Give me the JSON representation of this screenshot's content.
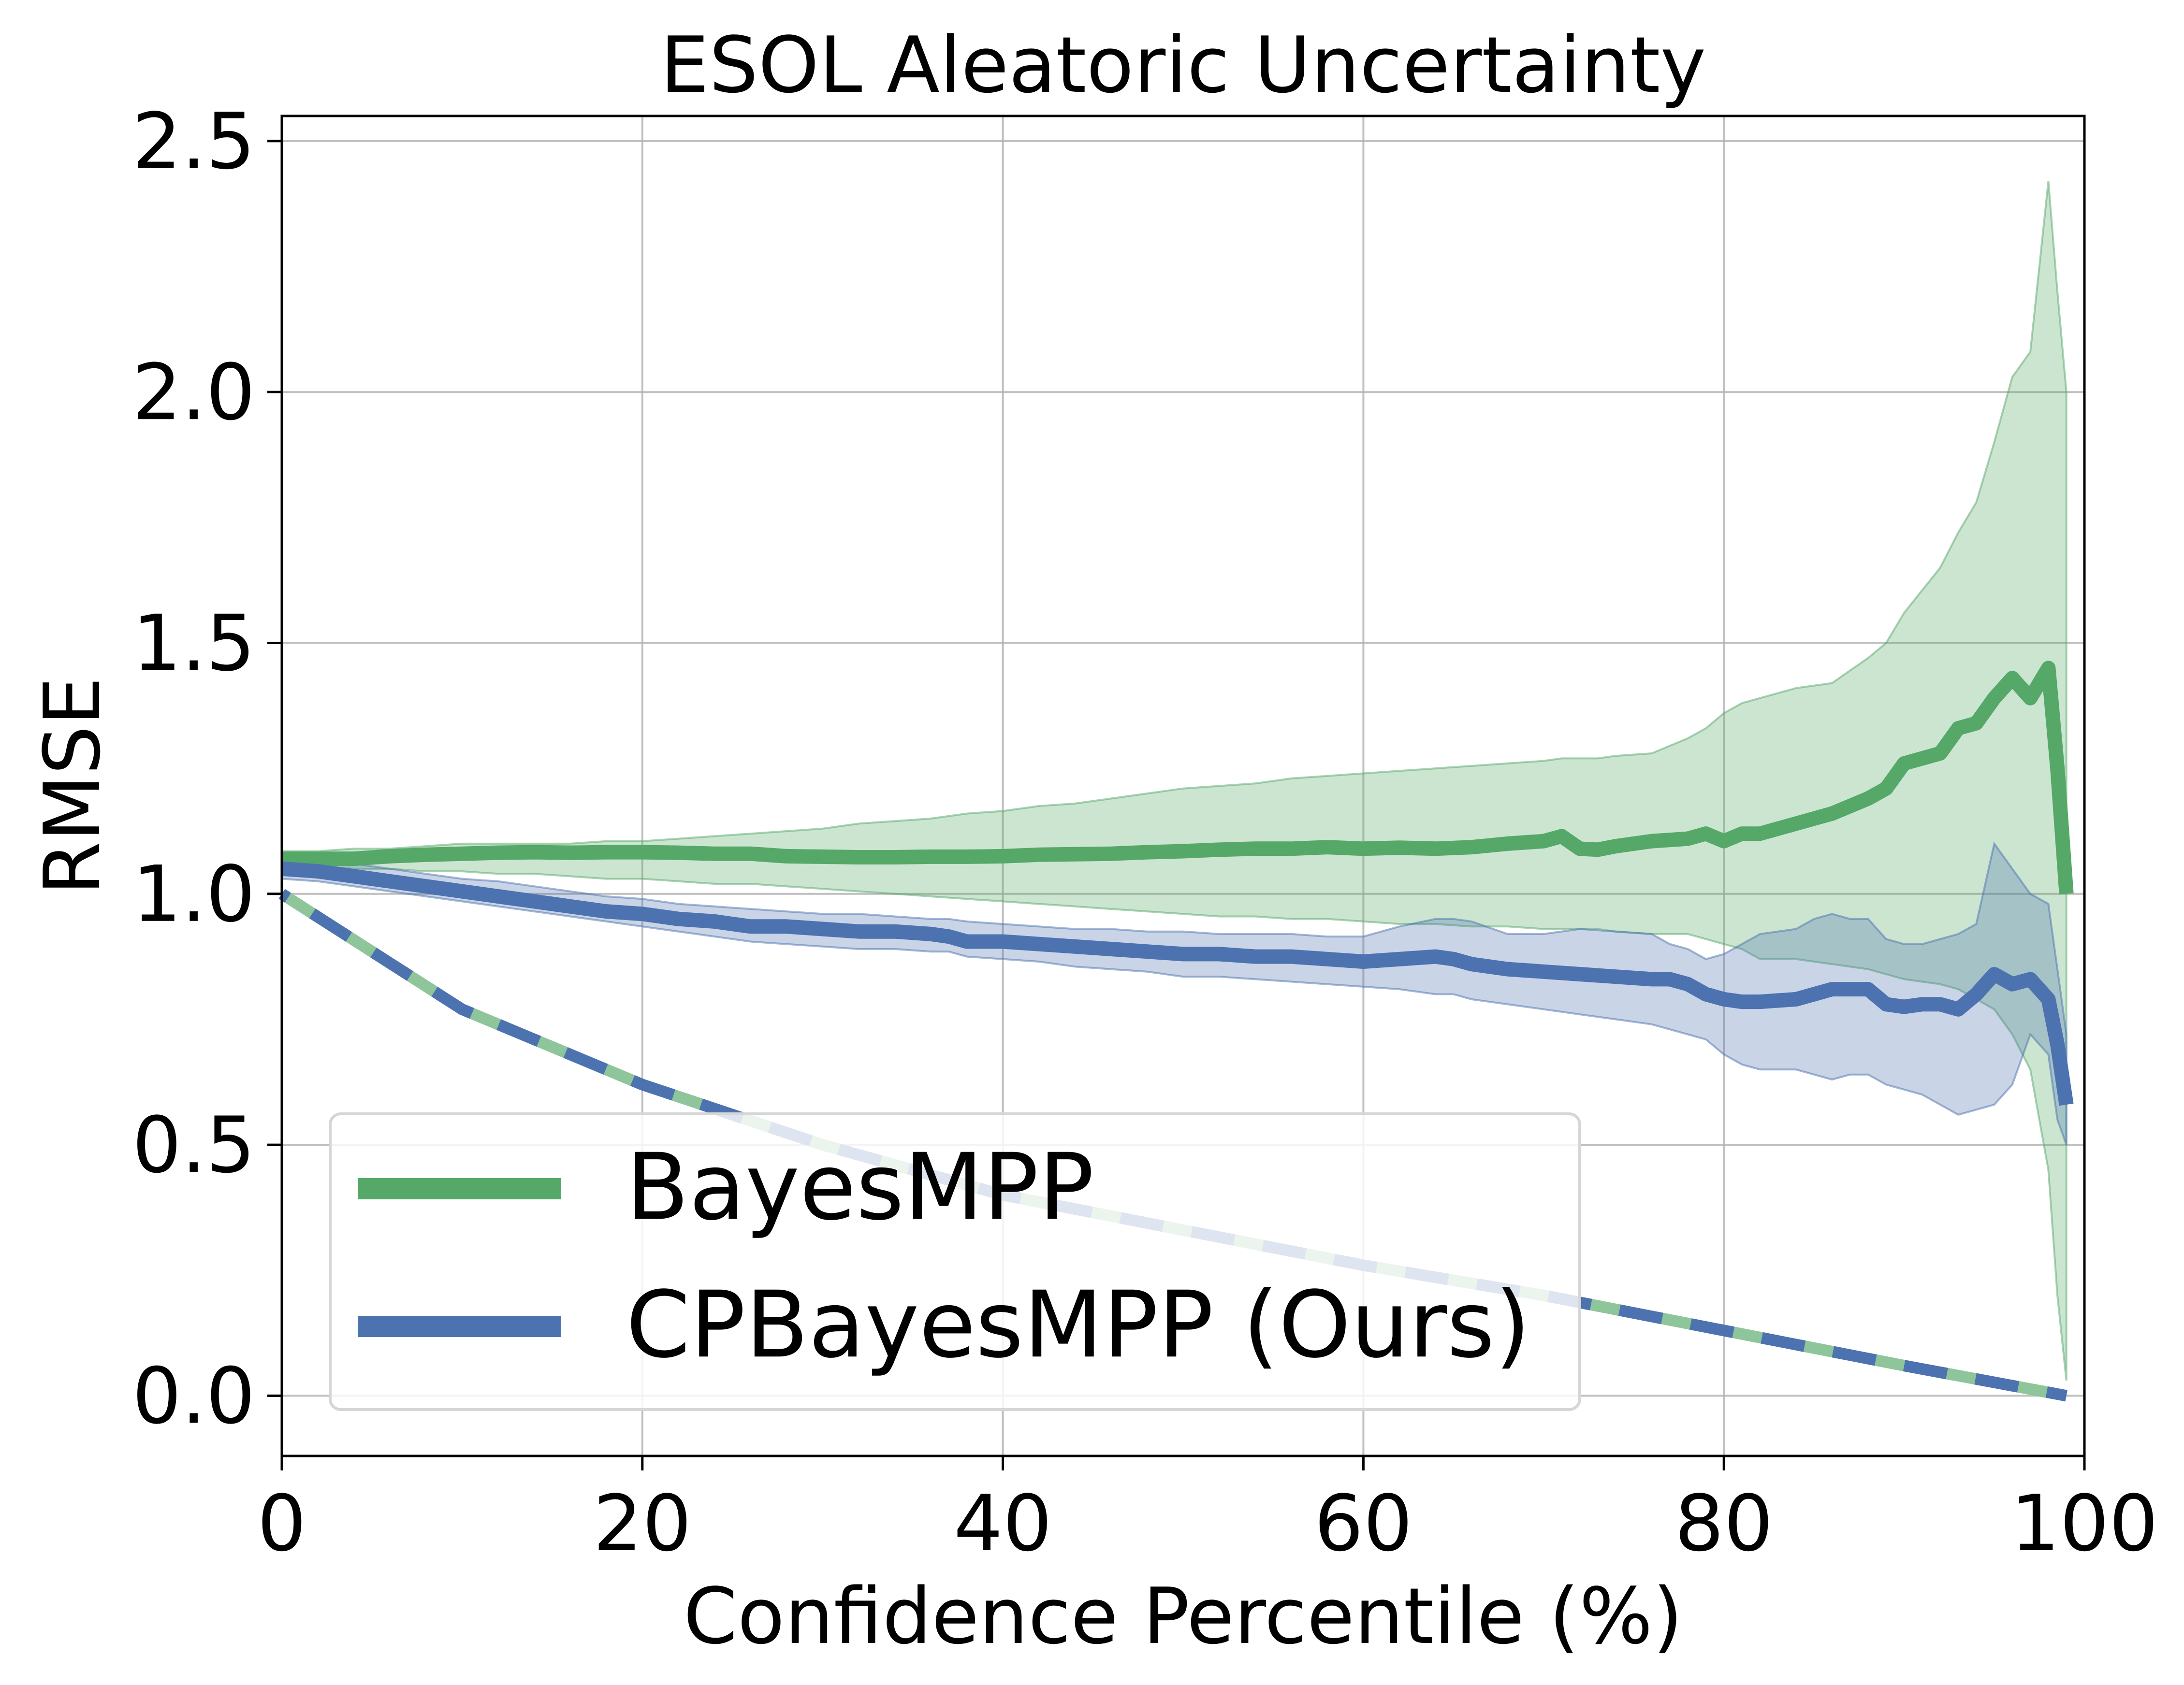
{
  "chart_data": {
    "type": "line",
    "title": "ESOL Aleatoric Uncertainty",
    "xlabel": "Confidence Percentile (%)",
    "ylabel": "RMSE",
    "xlim": [
      0,
      100
    ],
    "ylim": [
      -0.12,
      2.55
    ],
    "xticks": [
      0,
      20,
      40,
      60,
      80,
      100
    ],
    "xtick_labels": [
      "0",
      "20",
      "40",
      "60",
      "80",
      "100"
    ],
    "yticks": [
      0.0,
      0.5,
      1.0,
      1.5,
      2.0,
      2.5
    ],
    "ytick_labels": [
      "0.0",
      "0.5",
      "1.0",
      "1.5",
      "2.0",
      "2.5"
    ],
    "grid": true,
    "legend_position": "lower-left",
    "series": [
      {
        "name": "BayesMPP",
        "color": "#55a868",
        "x": [
          0,
          2,
          4,
          6,
          8,
          10,
          12,
          14,
          16,
          18,
          20,
          22,
          24,
          26,
          28,
          30,
          32,
          34,
          36,
          38,
          40,
          42,
          44,
          46,
          48,
          50,
          52,
          54,
          56,
          58,
          60,
          62,
          64,
          66,
          68,
          70,
          71,
          72,
          73,
          74,
          76,
          78,
          79,
          80,
          81,
          82,
          84,
          86,
          88,
          89,
          90,
          92,
          93,
          94,
          95,
          96,
          97,
          98,
          98.5,
          99
        ],
        "y": [
          1.07,
          1.07,
          1.07,
          1.075,
          1.078,
          1.08,
          1.082,
          1.083,
          1.082,
          1.083,
          1.083,
          1.082,
          1.08,
          1.08,
          1.075,
          1.074,
          1.073,
          1.073,
          1.074,
          1.074,
          1.075,
          1.078,
          1.079,
          1.08,
          1.083,
          1.085,
          1.088,
          1.09,
          1.09,
          1.093,
          1.09,
          1.092,
          1.09,
          1.093,
          1.1,
          1.105,
          1.115,
          1.09,
          1.088,
          1.095,
          1.105,
          1.11,
          1.12,
          1.105,
          1.12,
          1.12,
          1.14,
          1.16,
          1.19,
          1.21,
          1.26,
          1.28,
          1.33,
          1.34,
          1.39,
          1.43,
          1.39,
          1.45,
          1.25,
          1.0
        ],
        "band_upper": [
          1.085,
          1.085,
          1.09,
          1.09,
          1.095,
          1.1,
          1.1,
          1.1,
          1.1,
          1.105,
          1.105,
          1.11,
          1.115,
          1.12,
          1.125,
          1.13,
          1.14,
          1.145,
          1.15,
          1.16,
          1.165,
          1.175,
          1.18,
          1.19,
          1.2,
          1.21,
          1.215,
          1.22,
          1.23,
          1.235,
          1.24,
          1.245,
          1.25,
          1.255,
          1.26,
          1.265,
          1.27,
          1.27,
          1.27,
          1.275,
          1.28,
          1.31,
          1.33,
          1.36,
          1.38,
          1.39,
          1.41,
          1.42,
          1.47,
          1.5,
          1.56,
          1.65,
          1.72,
          1.78,
          1.9,
          2.03,
          2.08,
          2.42,
          2.2,
          2.0
        ],
        "band_lower": [
          1.055,
          1.055,
          1.05,
          1.05,
          1.045,
          1.045,
          1.04,
          1.04,
          1.035,
          1.03,
          1.03,
          1.025,
          1.02,
          1.02,
          1.015,
          1.01,
          1.005,
          1.0,
          0.995,
          0.99,
          0.985,
          0.98,
          0.975,
          0.97,
          0.965,
          0.96,
          0.955,
          0.955,
          0.95,
          0.95,
          0.945,
          0.94,
          0.94,
          0.935,
          0.935,
          0.93,
          0.93,
          0.93,
          0.93,
          0.925,
          0.92,
          0.92,
          0.91,
          0.9,
          0.89,
          0.87,
          0.87,
          0.86,
          0.85,
          0.84,
          0.83,
          0.82,
          0.81,
          0.79,
          0.77,
          0.72,
          0.65,
          0.45,
          0.2,
          0.03
        ],
        "dashed_x": [
          0,
          10,
          20,
          30,
          40,
          50,
          60,
          70,
          80,
          90,
          99
        ],
        "dashed_y": [
          1.0,
          0.77,
          0.62,
          0.5,
          0.4,
          0.33,
          0.26,
          0.2,
          0.13,
          0.06,
          0.0
        ]
      },
      {
        "name": "CPBayesMPP (Ours)",
        "color": "#4c72b0",
        "x": [
          0,
          2,
          4,
          6,
          8,
          10,
          12,
          14,
          16,
          18,
          20,
          22,
          24,
          26,
          28,
          30,
          32,
          34,
          36,
          37,
          38,
          40,
          42,
          44,
          46,
          48,
          50,
          52,
          54,
          56,
          58,
          60,
          62,
          64,
          65,
          66,
          68,
          70,
          72,
          74,
          76,
          77,
          78,
          79,
          80,
          81,
          82,
          84,
          85,
          86,
          87,
          88,
          89,
          90,
          91,
          92,
          93,
          94,
          95,
          96,
          97,
          98,
          98.5,
          99
        ],
        "y": [
          1.05,
          1.045,
          1.035,
          1.025,
          1.015,
          1.005,
          0.995,
          0.985,
          0.975,
          0.965,
          0.96,
          0.95,
          0.945,
          0.935,
          0.935,
          0.93,
          0.925,
          0.925,
          0.92,
          0.915,
          0.905,
          0.905,
          0.9,
          0.895,
          0.89,
          0.885,
          0.88,
          0.88,
          0.875,
          0.875,
          0.87,
          0.865,
          0.87,
          0.875,
          0.87,
          0.86,
          0.85,
          0.845,
          0.84,
          0.835,
          0.83,
          0.83,
          0.82,
          0.8,
          0.79,
          0.785,
          0.785,
          0.79,
          0.8,
          0.81,
          0.81,
          0.81,
          0.78,
          0.775,
          0.78,
          0.78,
          0.77,
          0.8,
          0.84,
          0.82,
          0.83,
          0.79,
          0.7,
          0.58
        ],
        "band_upper": [
          1.07,
          1.065,
          1.06,
          1.05,
          1.04,
          1.03,
          1.025,
          1.015,
          1.005,
          0.995,
          0.99,
          0.98,
          0.975,
          0.97,
          0.965,
          0.96,
          0.96,
          0.955,
          0.95,
          0.95,
          0.945,
          0.94,
          0.935,
          0.93,
          0.93,
          0.925,
          0.925,
          0.92,
          0.92,
          0.92,
          0.915,
          0.915,
          0.935,
          0.95,
          0.95,
          0.945,
          0.92,
          0.92,
          0.93,
          0.925,
          0.92,
          0.9,
          0.89,
          0.87,
          0.88,
          0.9,
          0.92,
          0.93,
          0.95,
          0.96,
          0.95,
          0.95,
          0.91,
          0.9,
          0.9,
          0.91,
          0.92,
          0.94,
          1.1,
          1.05,
          1.0,
          0.98,
          0.85,
          0.72
        ],
        "band_lower": [
          1.03,
          1.025,
          1.015,
          1.005,
          0.995,
          0.985,
          0.975,
          0.965,
          0.955,
          0.945,
          0.935,
          0.925,
          0.915,
          0.905,
          0.9,
          0.895,
          0.89,
          0.89,
          0.885,
          0.885,
          0.875,
          0.87,
          0.865,
          0.855,
          0.85,
          0.845,
          0.835,
          0.835,
          0.83,
          0.825,
          0.82,
          0.815,
          0.81,
          0.8,
          0.8,
          0.79,
          0.78,
          0.77,
          0.76,
          0.75,
          0.74,
          0.73,
          0.72,
          0.71,
          0.68,
          0.66,
          0.65,
          0.65,
          0.64,
          0.63,
          0.64,
          0.64,
          0.62,
          0.61,
          0.6,
          0.58,
          0.56,
          0.57,
          0.58,
          0.62,
          0.72,
          0.68,
          0.55,
          0.5
        ],
        "dashed_x": [
          0,
          10,
          20,
          30,
          40,
          50,
          60,
          70,
          80,
          90,
          99
        ],
        "dashed_y": [
          1.0,
          0.77,
          0.62,
          0.5,
          0.4,
          0.33,
          0.26,
          0.2,
          0.13,
          0.06,
          0.0
        ]
      }
    ]
  }
}
